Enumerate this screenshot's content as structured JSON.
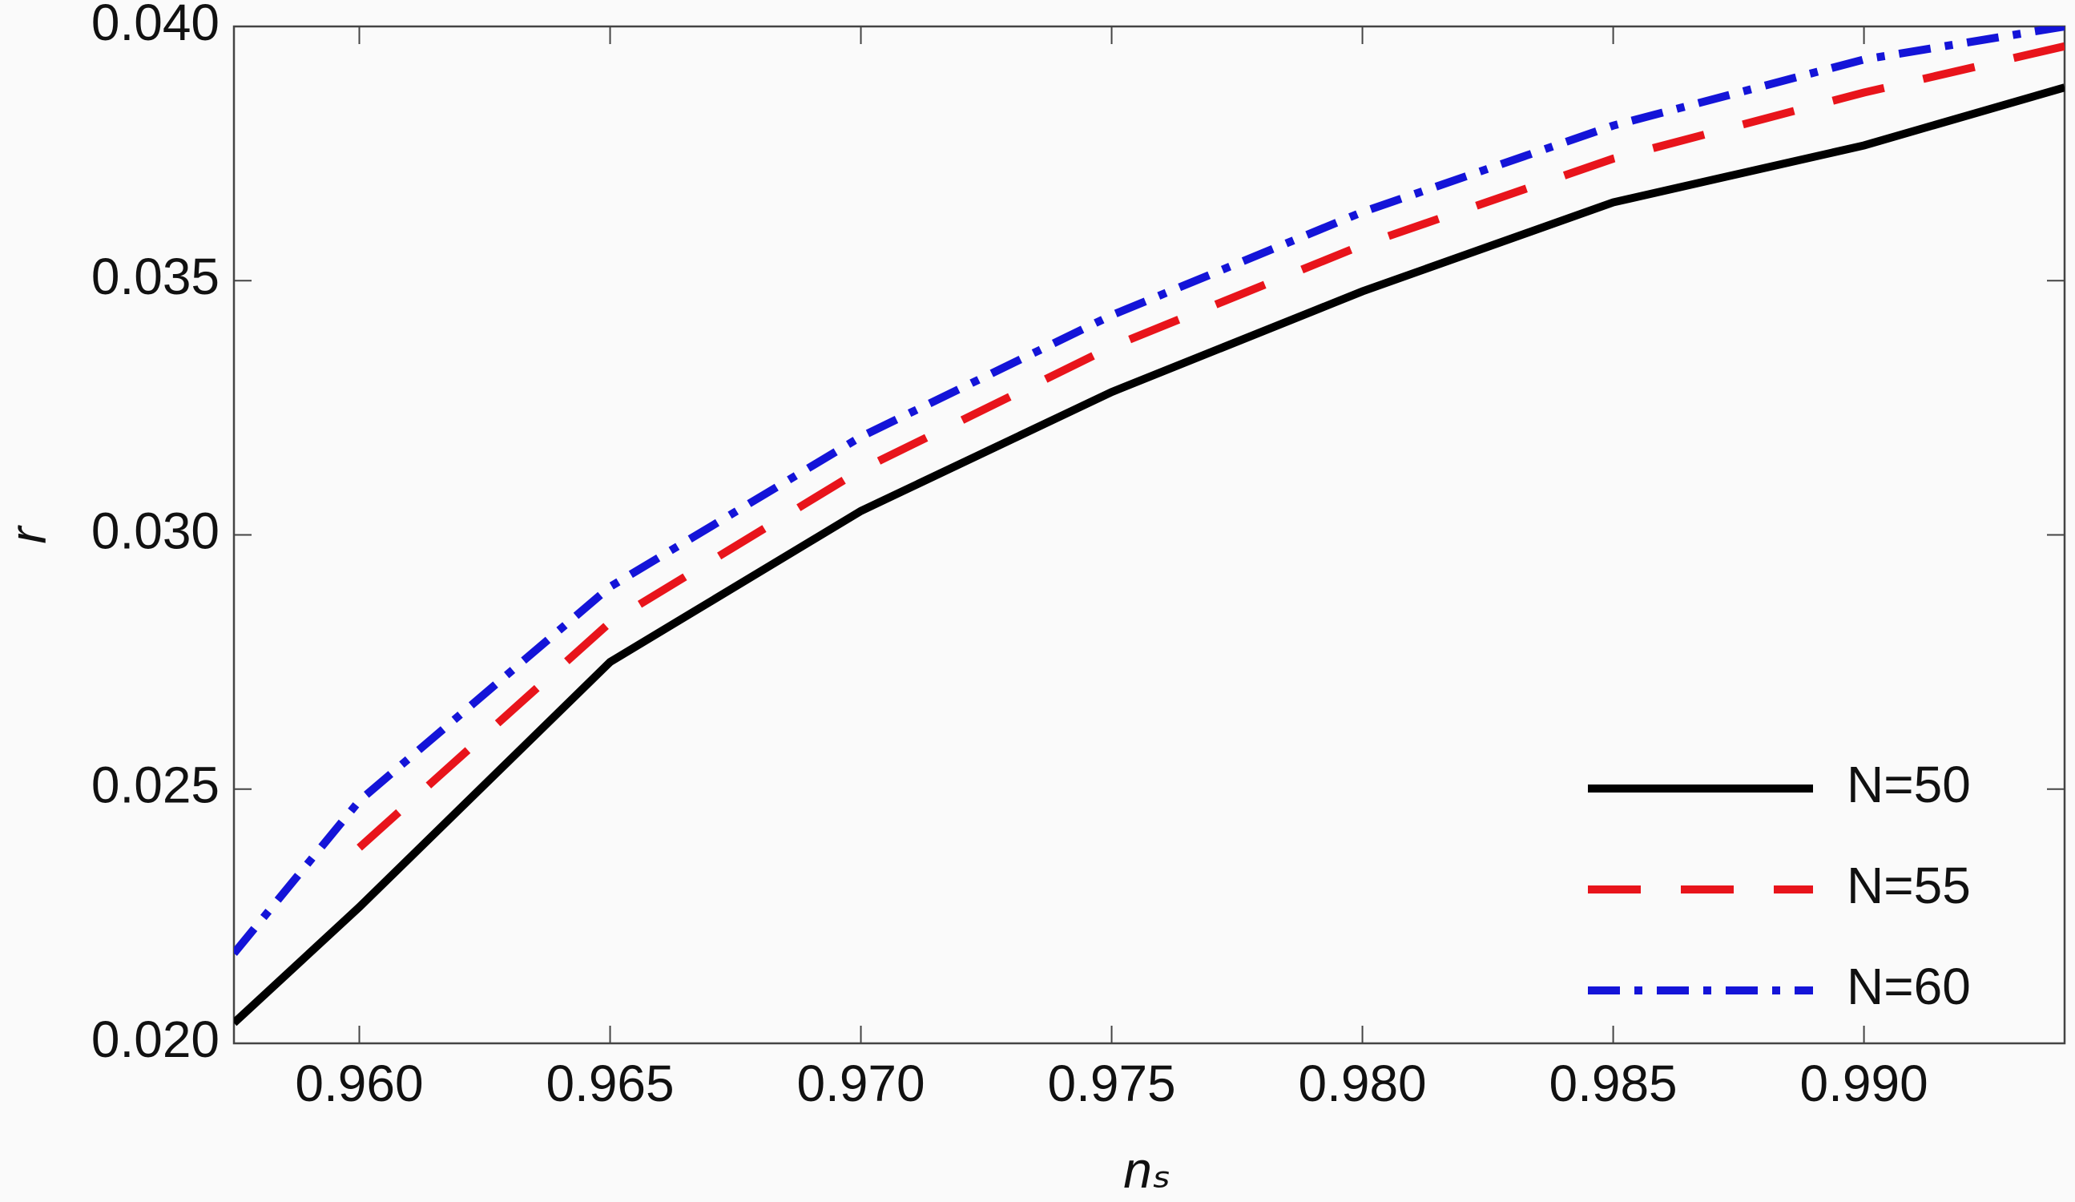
{
  "chart_data": {
    "type": "line",
    "xlabel": "nₛ",
    "ylabel": "r",
    "x": [
      0.9575,
      0.96,
      0.965,
      0.97,
      0.975,
      0.98,
      0.985,
      0.99,
      0.994
    ],
    "series": [
      {
        "name": "N=50",
        "color": "#000000",
        "dash": "solid",
        "values": [
          0.0204,
          0.02268,
          0.0275,
          0.03047,
          0.03281,
          0.03479,
          0.03654,
          0.03766,
          0.0388
        ]
      },
      {
        "name": "N=55",
        "color": "#e8141b",
        "dash": "dashed",
        "values": [
          null,
          0.02385,
          0.02828,
          0.03128,
          0.0337,
          0.0357,
          0.0374,
          0.0387,
          0.03961
        ]
      },
      {
        "name": "N=60",
        "color": "#1414d8",
        "dash": "dashdot",
        "values": [
          0.02177,
          0.02477,
          0.02898,
          0.03193,
          0.03432,
          0.03635,
          0.03805,
          0.03935,
          0.04
        ]
      }
    ],
    "xlim": [
      0.9575,
      0.994
    ],
    "ylim": [
      0.02,
      0.04
    ],
    "xticks": [
      {
        "value": 0.96,
        "label": "0.960"
      },
      {
        "value": 0.965,
        "label": "0.965"
      },
      {
        "value": 0.97,
        "label": "0.970"
      },
      {
        "value": 0.975,
        "label": "0.975"
      },
      {
        "value": 0.98,
        "label": "0.980"
      },
      {
        "value": 0.985,
        "label": "0.985"
      },
      {
        "value": 0.99,
        "label": "0.990"
      }
    ],
    "yticks": [
      {
        "value": 0.02,
        "label": "0.020"
      },
      {
        "value": 0.025,
        "label": "0.025"
      },
      {
        "value": 0.03,
        "label": "0.030"
      },
      {
        "value": 0.035,
        "label": "0.035"
      },
      {
        "value": 0.04,
        "label": "0.040"
      }
    ],
    "grid": false,
    "legend": "lower right"
  }
}
